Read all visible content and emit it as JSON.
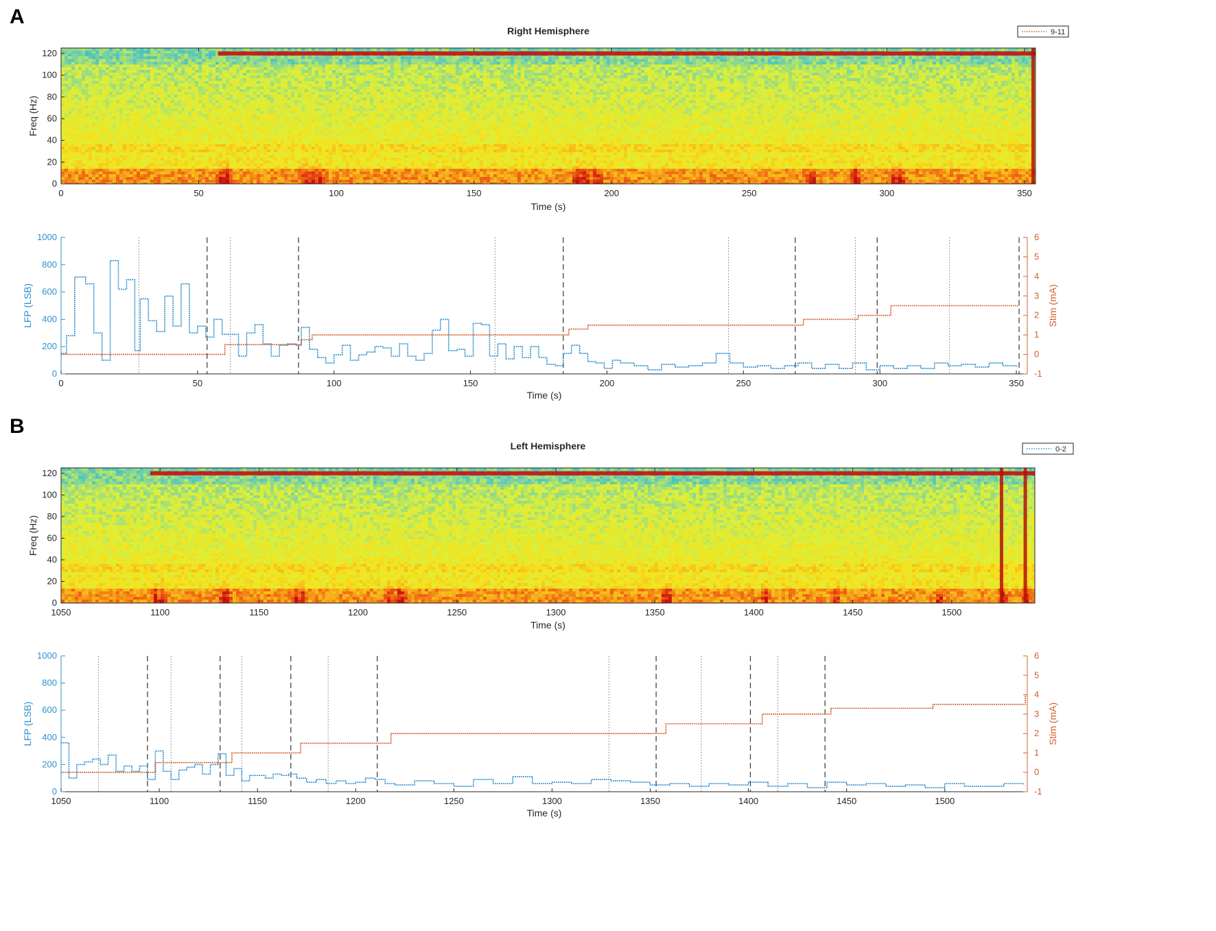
{
  "panels": {
    "a": {
      "letter": "A"
    },
    "b": {
      "letter": "B"
    }
  },
  "colors": {
    "lfp": "#2f8fcf",
    "stim": "#d55e2a",
    "axis": "#262626",
    "dashed_marker": "#333333",
    "dotted_marker": "#777777",
    "spectrogram_palette": [
      "#27b8d6",
      "#7fd3a0",
      "#d9f03c",
      "#f5e21c",
      "#f7b21a",
      "#ef5a12",
      "#c8100e"
    ]
  },
  "chart_data": [
    {
      "id": "right-spectrogram",
      "type": "heatmap",
      "title": "Right Hemisphere",
      "xlabel": "Time (s)",
      "ylabel": "Freq (Hz)",
      "xlim": [
        0,
        354
      ],
      "ylim": [
        0,
        125
      ],
      "xticks": [
        0,
        50,
        100,
        150,
        200,
        250,
        300,
        350
      ],
      "yticks": [
        0,
        20,
        40,
        60,
        80,
        100,
        120
      ],
      "legend": {
        "label": "9-11",
        "color": "#d55e2a",
        "placement": "top-right"
      },
      "line_noise_hz": 120,
      "line_noise_start_s": 57,
      "high_power_bands_hz": [
        [
          0,
          15
        ],
        [
          30,
          38
        ]
      ],
      "bursts_s": [
        58,
        60,
        88,
        91,
        93,
        187,
        190,
        194,
        272,
        288,
        302,
        304
      ],
      "artifact_s": [
        353
      ]
    },
    {
      "id": "right-lfp-stim",
      "type": "line",
      "xlabel": "Time (s)",
      "ylabel": "LFP (LSB)",
      "y2label": "Stim (mA)",
      "xlim": [
        0,
        354
      ],
      "ylim": [
        0,
        1000
      ],
      "y2lim": [
        -1,
        6
      ],
      "xticks": [
        0,
        50,
        100,
        150,
        200,
        250,
        300,
        350
      ],
      "yticks": [
        0,
        200,
        400,
        600,
        800,
        1000
      ],
      "y2ticks": [
        -1,
        0,
        1,
        2,
        3,
        4,
        5,
        6
      ],
      "dashed_markers_s": [
        53.5,
        87,
        184,
        269,
        299,
        351
      ],
      "dotted_markers_s": [
        28.5,
        62,
        159,
        244.5,
        291,
        325.5
      ],
      "series": [
        {
          "axis": "left",
          "x": [
            0,
            2,
            5,
            9,
            12,
            15,
            18,
            21,
            24,
            27,
            29,
            32,
            35,
            38,
            41,
            44,
            47,
            50,
            53,
            56,
            59,
            62,
            65,
            68,
            71,
            74,
            77,
            80,
            83,
            86,
            88,
            91,
            94,
            97,
            100,
            103,
            106,
            109,
            112,
            115,
            118,
            121,
            124,
            127,
            130,
            133,
            136,
            139,
            142,
            145,
            148,
            151,
            154,
            157,
            160,
            163,
            166,
            169,
            172,
            175,
            178,
            181,
            184,
            187,
            190,
            193,
            196,
            199,
            202,
            205,
            210,
            215,
            220,
            225,
            230,
            235,
            240,
            245,
            250,
            255,
            260,
            265,
            270,
            275,
            280,
            285,
            290,
            295,
            300,
            305,
            310,
            315,
            320,
            325,
            330,
            335,
            340,
            345,
            350
          ],
          "y": [
            150,
            280,
            710,
            660,
            300,
            100,
            830,
            620,
            690,
            170,
            550,
            390,
            310,
            570,
            350,
            660,
            300,
            350,
            270,
            400,
            290,
            290,
            130,
            300,
            360,
            220,
            130,
            210,
            220,
            210,
            340,
            180,
            120,
            80,
            140,
            210,
            100,
            140,
            160,
            200,
            190,
            130,
            220,
            130,
            100,
            150,
            320,
            400,
            170,
            180,
            130,
            370,
            360,
            130,
            220,
            110,
            200,
            120,
            200,
            120,
            70,
            60,
            150,
            210,
            150,
            90,
            80,
            40,
            100,
            80,
            60,
            30,
            70,
            50,
            60,
            80,
            150,
            80,
            50,
            60,
            40,
            60,
            80,
            40,
            70,
            40,
            80,
            30,
            60,
            40,
            60,
            40,
            80,
            60,
            70,
            50,
            80,
            60,
            50
          ]
        },
        {
          "axis": "right",
          "x": [
            0,
            54,
            60,
            62,
            86,
            88,
            92,
            183,
            186,
            193,
            268,
            272,
            290,
            292,
            300,
            304,
            351
          ],
          "y": [
            0,
            0,
            0.5,
            0.5,
            0.5,
            0.75,
            1,
            1,
            1.3,
            1.5,
            1.5,
            1.8,
            1.8,
            2,
            2,
            2.5,
            2.5
          ]
        }
      ]
    },
    {
      "id": "left-spectrogram",
      "type": "heatmap",
      "title": "Left Hemisphere",
      "xlabel": "Time (s)",
      "ylabel": "Freq (Hz)",
      "xlim": [
        1050,
        1542
      ],
      "ylim": [
        0,
        125
      ],
      "xticks": [
        1050,
        1100,
        1150,
        1200,
        1250,
        1300,
        1350,
        1400,
        1450,
        1500
      ],
      "yticks": [
        0,
        20,
        40,
        60,
        80,
        100,
        120
      ],
      "legend": {
        "label": "0-2",
        "color": "#2f8fcf",
        "placement": "top-right"
      },
      "line_noise_hz": 120,
      "line_noise_start_s": 1095,
      "high_power_bands_hz": [
        [
          0,
          15
        ],
        [
          30,
          38
        ]
      ],
      "bursts_s": [
        1097,
        1100,
        1131,
        1133,
        1168,
        1171,
        1215,
        1220,
        1222,
        1354,
        1356,
        1405,
        1441,
        1493,
        1525,
        1537
      ],
      "artifact_s": [
        1525,
        1537
      ]
    },
    {
      "id": "left-lfp-stim",
      "type": "line",
      "xlabel": "Time (s)",
      "ylabel": "LFP (LSB)",
      "y2label": "Stim (mA)",
      "xlim": [
        1050,
        1542
      ],
      "ylim": [
        0,
        1000
      ],
      "y2lim": [
        -1,
        6
      ],
      "xticks": [
        1050,
        1100,
        1150,
        1200,
        1250,
        1300,
        1350,
        1400,
        1450,
        1500
      ],
      "yticks": [
        0,
        200,
        400,
        600,
        800,
        1000
      ],
      "y2ticks": [
        -1,
        0,
        1,
        2,
        3,
        4,
        5,
        6
      ],
      "dashed_markers_s": [
        1094,
        1131,
        1167,
        1211,
        1353,
        1401,
        1439
      ],
      "dotted_markers_s": [
        1069,
        1106,
        1142,
        1186,
        1329,
        1376,
        1415
      ],
      "series": [
        {
          "axis": "left",
          "x": [
            1050,
            1054,
            1058,
            1062,
            1066,
            1070,
            1074,
            1078,
            1082,
            1086,
            1090,
            1094,
            1098,
            1102,
            1106,
            1110,
            1114,
            1118,
            1122,
            1126,
            1130,
            1134,
            1138,
            1142,
            1146,
            1150,
            1154,
            1158,
            1162,
            1166,
            1170,
            1175,
            1180,
            1185,
            1190,
            1195,
            1200,
            1205,
            1210,
            1215,
            1220,
            1230,
            1240,
            1250,
            1260,
            1270,
            1280,
            1290,
            1300,
            1310,
            1320,
            1330,
            1340,
            1350,
            1360,
            1370,
            1380,
            1390,
            1400,
            1410,
            1420,
            1430,
            1440,
            1450,
            1460,
            1470,
            1480,
            1490,
            1500,
            1510,
            1520,
            1530,
            1540
          ],
          "y": [
            360,
            100,
            200,
            220,
            240,
            200,
            270,
            150,
            190,
            150,
            190,
            90,
            300,
            150,
            90,
            160,
            180,
            200,
            130,
            200,
            280,
            120,
            170,
            80,
            120,
            120,
            100,
            130,
            120,
            130,
            100,
            70,
            90,
            60,
            80,
            60,
            70,
            100,
            90,
            60,
            50,
            80,
            60,
            40,
            90,
            60,
            110,
            60,
            70,
            60,
            90,
            80,
            70,
            50,
            60,
            40,
            60,
            50,
            70,
            40,
            60,
            30,
            70,
            50,
            60,
            40,
            50,
            30,
            60,
            40,
            40,
            60,
            50
          ]
        },
        {
          "axis": "right",
          "x": [
            1050,
            1094,
            1098,
            1131,
            1137,
            1167,
            1172,
            1211,
            1218,
            1353,
            1358,
            1401,
            1407,
            1439,
            1442,
            1494,
            1537,
            1541
          ],
          "y": [
            0,
            0,
            0.5,
            0.5,
            1,
            1,
            1.5,
            1.5,
            2,
            2,
            2.5,
            2.5,
            3,
            3,
            3.3,
            3.5,
            3.5,
            4
          ]
        }
      ]
    }
  ]
}
